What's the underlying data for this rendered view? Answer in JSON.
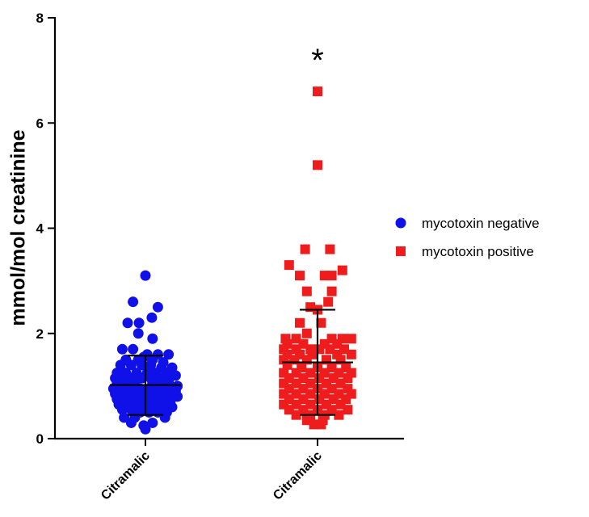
{
  "chart_data": {
    "type": "scatter",
    "ylabel": "mmol/mol creatinine",
    "ylim": [
      0,
      8
    ],
    "yticks": [
      0,
      2,
      4,
      6,
      8
    ],
    "categories": [
      "Citramalic",
      "Citramalic"
    ],
    "legend_position": "right",
    "significance": {
      "category_index": 1,
      "label": "*"
    },
    "series": [
      {
        "name": "mycotoxin negative",
        "color": "#1010e8",
        "marker": "circle",
        "category_index": 0,
        "mean": 1.02,
        "sd_low": 0.45,
        "sd_high": 1.58,
        "points": [
          [
            0,
            3.1
          ],
          [
            -0.35,
            2.6
          ],
          [
            0.35,
            2.5
          ],
          [
            0.18,
            2.3
          ],
          [
            -0.18,
            2.2
          ],
          [
            -0.5,
            2.2
          ],
          [
            -0.2,
            2.0
          ],
          [
            0.2,
            1.9
          ],
          [
            -0.65,
            1.7
          ],
          [
            -0.35,
            1.7
          ],
          [
            0.65,
            1.6
          ],
          [
            0.35,
            1.6
          ],
          [
            0.05,
            1.6
          ],
          [
            -0.05,
            1.55
          ],
          [
            -0.55,
            1.5
          ],
          [
            -0.2,
            1.5
          ],
          [
            0.2,
            1.5
          ],
          [
            0.5,
            1.45
          ],
          [
            -0.7,
            1.4
          ],
          [
            -0.4,
            1.4
          ],
          [
            -0.1,
            1.4
          ],
          [
            0.15,
            1.4
          ],
          [
            0.45,
            1.35
          ],
          [
            0.75,
            1.35
          ],
          [
            -0.8,
            1.25
          ],
          [
            -0.55,
            1.25
          ],
          [
            -0.25,
            1.25
          ],
          [
            0.05,
            1.25
          ],
          [
            0.3,
            1.25
          ],
          [
            0.6,
            1.25
          ],
          [
            0.85,
            1.2
          ],
          [
            -0.85,
            1.15
          ],
          [
            -0.6,
            1.15
          ],
          [
            -0.35,
            1.15
          ],
          [
            -0.1,
            1.15
          ],
          [
            0.15,
            1.15
          ],
          [
            0.4,
            1.15
          ],
          [
            0.65,
            1.1
          ],
          [
            -0.8,
            1.05
          ],
          [
            -0.55,
            1.05
          ],
          [
            -0.3,
            1.05
          ],
          [
            0.2,
            1.05
          ],
          [
            0.45,
            1.05
          ],
          [
            0.7,
            1.0
          ],
          [
            0.9,
            1.0
          ],
          [
            -0.9,
            0.95
          ],
          [
            -0.65,
            0.95
          ],
          [
            -0.4,
            0.95
          ],
          [
            -0.15,
            0.95
          ],
          [
            0.1,
            0.95
          ],
          [
            0.35,
            0.95
          ],
          [
            0.6,
            0.9
          ],
          [
            0.85,
            0.9
          ],
          [
            -0.85,
            0.85
          ],
          [
            -0.6,
            0.85
          ],
          [
            -0.35,
            0.85
          ],
          [
            -0.1,
            0.85
          ],
          [
            0.15,
            0.85
          ],
          [
            0.4,
            0.85
          ],
          [
            0.65,
            0.8
          ],
          [
            0.9,
            0.8
          ],
          [
            -0.8,
            0.75
          ],
          [
            -0.55,
            0.75
          ],
          [
            -0.3,
            0.75
          ],
          [
            -0.05,
            0.75
          ],
          [
            0.2,
            0.75
          ],
          [
            0.45,
            0.75
          ],
          [
            0.7,
            0.7
          ],
          [
            -0.75,
            0.65
          ],
          [
            -0.5,
            0.65
          ],
          [
            -0.25,
            0.65
          ],
          [
            0.0,
            0.65
          ],
          [
            0.25,
            0.65
          ],
          [
            0.5,
            0.6
          ],
          [
            0.75,
            0.6
          ],
          [
            -0.65,
            0.55
          ],
          [
            -0.4,
            0.55
          ],
          [
            -0.15,
            0.5
          ],
          [
            0.1,
            0.5
          ],
          [
            0.35,
            0.5
          ],
          [
            0.6,
            0.5
          ],
          [
            -0.6,
            0.4
          ],
          [
            -0.3,
            0.4
          ],
          [
            0.55,
            0.4
          ],
          [
            -0.4,
            0.3
          ],
          [
            0.2,
            0.3
          ],
          [
            -0.05,
            0.25
          ],
          [
            0.0,
            0.18
          ]
        ]
      },
      {
        "name": "mycotoxin positive",
        "color": "#ee1c1c",
        "marker": "square",
        "category_index": 1,
        "mean": 1.45,
        "sd_low": 0.45,
        "sd_high": 2.45,
        "points": [
          [
            0.0,
            6.6
          ],
          [
            0.0,
            5.2
          ],
          [
            -0.35,
            3.6
          ],
          [
            0.35,
            3.6
          ],
          [
            -0.8,
            3.3
          ],
          [
            0.7,
            3.2
          ],
          [
            -0.5,
            3.1
          ],
          [
            0.2,
            3.1
          ],
          [
            0.4,
            3.1
          ],
          [
            -0.3,
            2.8
          ],
          [
            0.4,
            2.8
          ],
          [
            0.3,
            2.6
          ],
          [
            -0.2,
            2.5
          ],
          [
            0.0,
            2.45
          ],
          [
            -0.5,
            2.2
          ],
          [
            0.1,
            2.2
          ],
          [
            -0.3,
            2.0
          ],
          [
            -0.9,
            1.9
          ],
          [
            -0.6,
            1.9
          ],
          [
            0.4,
            1.9
          ],
          [
            0.7,
            1.9
          ],
          [
            0.95,
            1.9
          ],
          [
            -0.85,
            1.8
          ],
          [
            -0.4,
            1.8
          ],
          [
            0.2,
            1.8
          ],
          [
            0.55,
            1.8
          ],
          [
            -0.95,
            1.7
          ],
          [
            -0.6,
            1.7
          ],
          [
            -0.2,
            1.7
          ],
          [
            0.05,
            1.7
          ],
          [
            0.35,
            1.7
          ],
          [
            0.75,
            1.7
          ],
          [
            -0.85,
            1.6
          ],
          [
            -0.5,
            1.6
          ],
          [
            -0.15,
            1.6
          ],
          [
            0.55,
            1.6
          ],
          [
            0.95,
            1.6
          ],
          [
            -0.95,
            1.5
          ],
          [
            -0.65,
            1.5
          ],
          [
            -0.3,
            1.5
          ],
          [
            0.25,
            1.5
          ],
          [
            0.65,
            1.5
          ],
          [
            -0.85,
            1.4
          ],
          [
            -0.45,
            1.35
          ],
          [
            0.0,
            1.35
          ],
          [
            0.4,
            1.35
          ],
          [
            0.8,
            1.35
          ],
          [
            -0.95,
            1.25
          ],
          [
            -0.6,
            1.25
          ],
          [
            -0.2,
            1.25
          ],
          [
            0.2,
            1.25
          ],
          [
            0.6,
            1.25
          ],
          [
            0.95,
            1.25
          ],
          [
            -0.8,
            1.15
          ],
          [
            -0.4,
            1.15
          ],
          [
            0.05,
            1.15
          ],
          [
            0.45,
            1.15
          ],
          [
            0.85,
            1.15
          ],
          [
            -0.95,
            1.05
          ],
          [
            -0.6,
            1.05
          ],
          [
            -0.2,
            1.05
          ],
          [
            0.25,
            1.05
          ],
          [
            0.65,
            1.05
          ],
          [
            -0.8,
            0.95
          ],
          [
            -0.4,
            0.95
          ],
          [
            0.0,
            0.95
          ],
          [
            0.4,
            0.95
          ],
          [
            0.85,
            0.95
          ],
          [
            -0.95,
            0.85
          ],
          [
            -0.6,
            0.85
          ],
          [
            -0.2,
            0.85
          ],
          [
            0.2,
            0.85
          ],
          [
            0.6,
            0.85
          ],
          [
            0.95,
            0.85
          ],
          [
            -0.8,
            0.75
          ],
          [
            -0.4,
            0.75
          ],
          [
            0.05,
            0.75
          ],
          [
            0.45,
            0.75
          ],
          [
            0.8,
            0.75
          ],
          [
            -0.95,
            0.65
          ],
          [
            -0.6,
            0.65
          ],
          [
            -0.2,
            0.65
          ],
          [
            0.25,
            0.65
          ],
          [
            0.65,
            0.65
          ],
          [
            -0.8,
            0.55
          ],
          [
            -0.4,
            0.55
          ],
          [
            0.0,
            0.55
          ],
          [
            0.4,
            0.55
          ],
          [
            0.85,
            0.55
          ],
          [
            -0.6,
            0.45
          ],
          [
            -0.2,
            0.45
          ],
          [
            0.2,
            0.45
          ],
          [
            0.6,
            0.45
          ],
          [
            -0.3,
            0.35
          ],
          [
            0.15,
            0.35
          ],
          [
            -0.1,
            0.27
          ],
          [
            0.1,
            0.27
          ]
        ]
      }
    ]
  }
}
